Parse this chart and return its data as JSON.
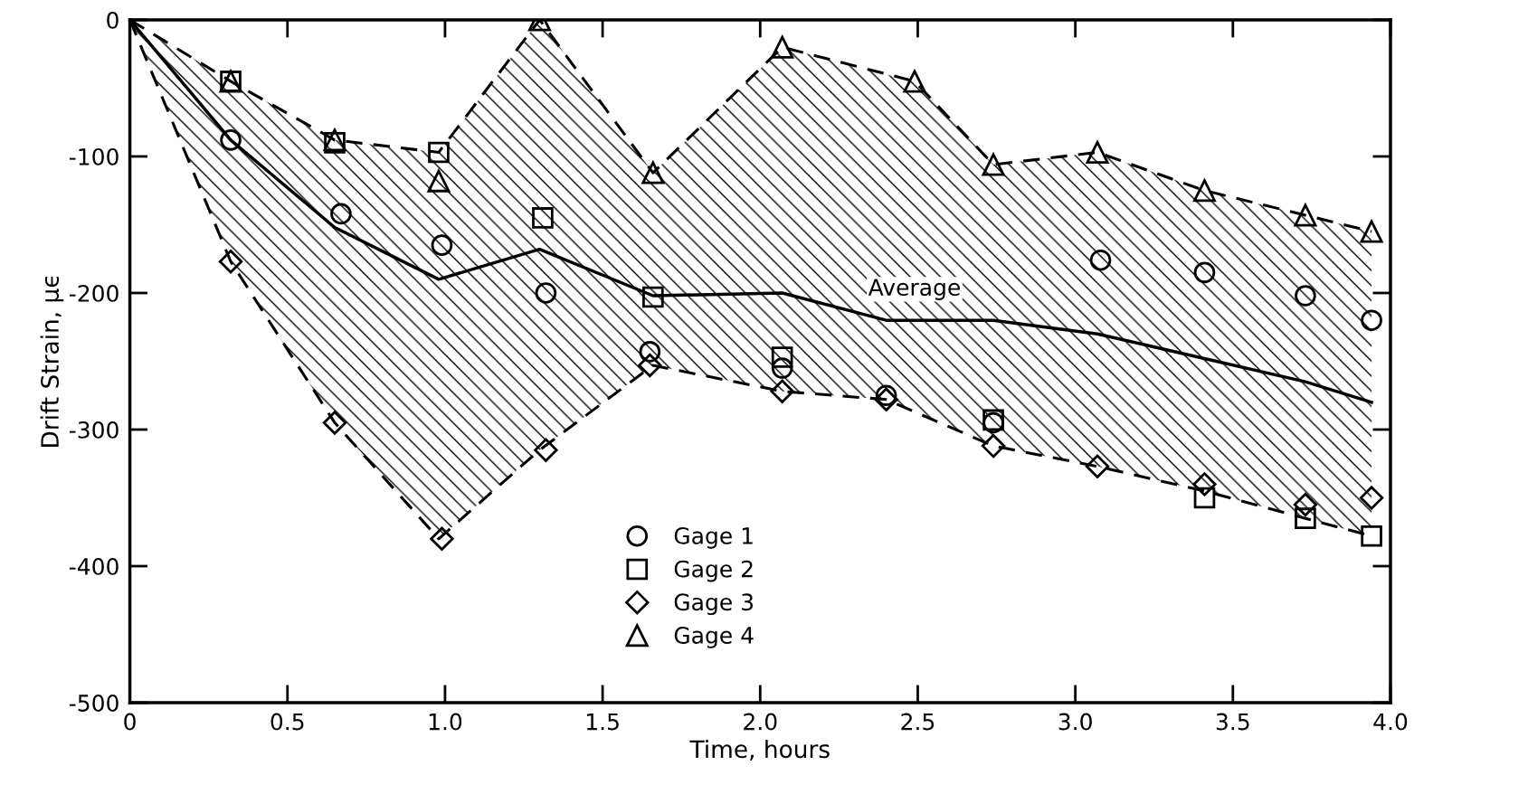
{
  "chart_data": {
    "type": "scatter",
    "xlabel": "Time, hours",
    "ylabel": "Drift Strain, μϵ",
    "xlim": [
      0,
      4
    ],
    "ylim": [
      -500,
      0
    ],
    "xticks": [
      0,
      0.5,
      {
        "value": 1,
        "label": "1.0"
      },
      1.5,
      {
        "value": 2,
        "label": "2.0"
      },
      2.5,
      {
        "value": 3,
        "label": "3.0"
      },
      3.5,
      {
        "value": 4,
        "label": "4.0"
      }
    ],
    "yticks": [
      -500,
      -400,
      -300,
      -200,
      -100,
      0
    ],
    "grid": false,
    "legend": "bottom",
    "series": [
      {
        "type": "line",
        "color": "#000000",
        "marker": "none",
        "line_style": "dashed",
        "x": [
          0,
          0.32,
          0.65,
          0.98,
          1.3,
          1.66,
          2.07,
          2.49,
          2.74,
          3.07,
          3.41,
          3.73,
          3.94
        ],
        "values": [
          0,
          -45,
          -88,
          -97,
          0,
          -112,
          -20,
          -45,
          -106,
          -97,
          -125,
          -143,
          -155
        ]
      },
      {
        "type": "line",
        "color": "#000000",
        "marker": "none",
        "line_style": "dashed",
        "x": [
          0,
          0.32,
          0.65,
          0.98,
          1.3,
          1.66,
          2.07,
          2.4,
          2.74,
          3.07,
          3.41,
          3.73,
          3.94
        ],
        "values": [
          0,
          -177,
          -295,
          -380,
          -315,
          -253,
          -272,
          -278,
          -312,
          -327,
          -345,
          -365,
          -378
        ]
      },
      {
        "name": "Average",
        "type": "line",
        "color": "#000000",
        "marker": "none",
        "line_style": "solid",
        "x": [
          0,
          0.32,
          0.65,
          0.98,
          1.3,
          1.66,
          2.07,
          2.4,
          2.49,
          2.74,
          3.07,
          3.41,
          3.73,
          3.94
        ],
        "values": [
          0,
          -88,
          -152,
          -190,
          -168,
          -202,
          -200,
          -220,
          -220,
          -220,
          -230,
          -248,
          -265,
          -280
        ],
        "lower": [
          0,
          -177,
          -295,
          -380,
          -315,
          -253,
          -272,
          -278,
          -286,
          -312,
          -327,
          -345,
          -365,
          -378
        ],
        "upper": [
          0,
          -45,
          -88,
          -97,
          0,
          -112,
          -20,
          -40,
          -45,
          -106,
          -97,
          -125,
          -143,
          -155
        ]
      },
      {
        "name": "Gage 1",
        "color": "#000000",
        "marker": "circle",
        "x": [
          0.32,
          0.67,
          0.99,
          1.32,
          1.65,
          2.07,
          2.4,
          2.74,
          3.08,
          3.41,
          3.73,
          3.94
        ],
        "values": [
          -88,
          -142,
          -165,
          -200,
          -243,
          -255,
          -275,
          -295,
          -176,
          -185,
          -202,
          -220
        ]
      },
      {
        "name": "Gage 2",
        "color": "#000000",
        "marker": "square",
        "x": [
          0.32,
          0.65,
          0.98,
          1.31,
          1.66,
          2.07,
          2.4,
          2.74,
          3.07,
          3.41,
          3.73,
          3.94
        ],
        "values": [
          -45,
          -90,
          -97,
          -145,
          -203,
          -247,
          null,
          -293,
          null,
          -350,
          -365,
          -378
        ]
      },
      {
        "name": "Gage 3",
        "color": "#000000",
        "marker": "diamond",
        "x": [
          0.32,
          0.65,
          0.99,
          1.32,
          1.65,
          2.07,
          2.4,
          2.74,
          3.07,
          3.41,
          3.73,
          3.94
        ],
        "values": [
          -177,
          -295,
          -380,
          -315,
          -253,
          -272,
          -278,
          -312,
          -327,
          -340,
          -355,
          -350
        ]
      },
      {
        "name": "Gage 4",
        "color": "#000000",
        "marker": "triangle",
        "x": [
          0.32,
          0.65,
          0.98,
          1.3,
          1.66,
          2.07,
          2.49,
          2.74,
          3.07,
          3.41,
          3.73,
          3.94
        ],
        "values": [
          -45,
          -88,
          -118,
          0,
          -112,
          -20,
          -45,
          -106,
          -97,
          -125,
          -143,
          -155
        ]
      }
    ]
  }
}
